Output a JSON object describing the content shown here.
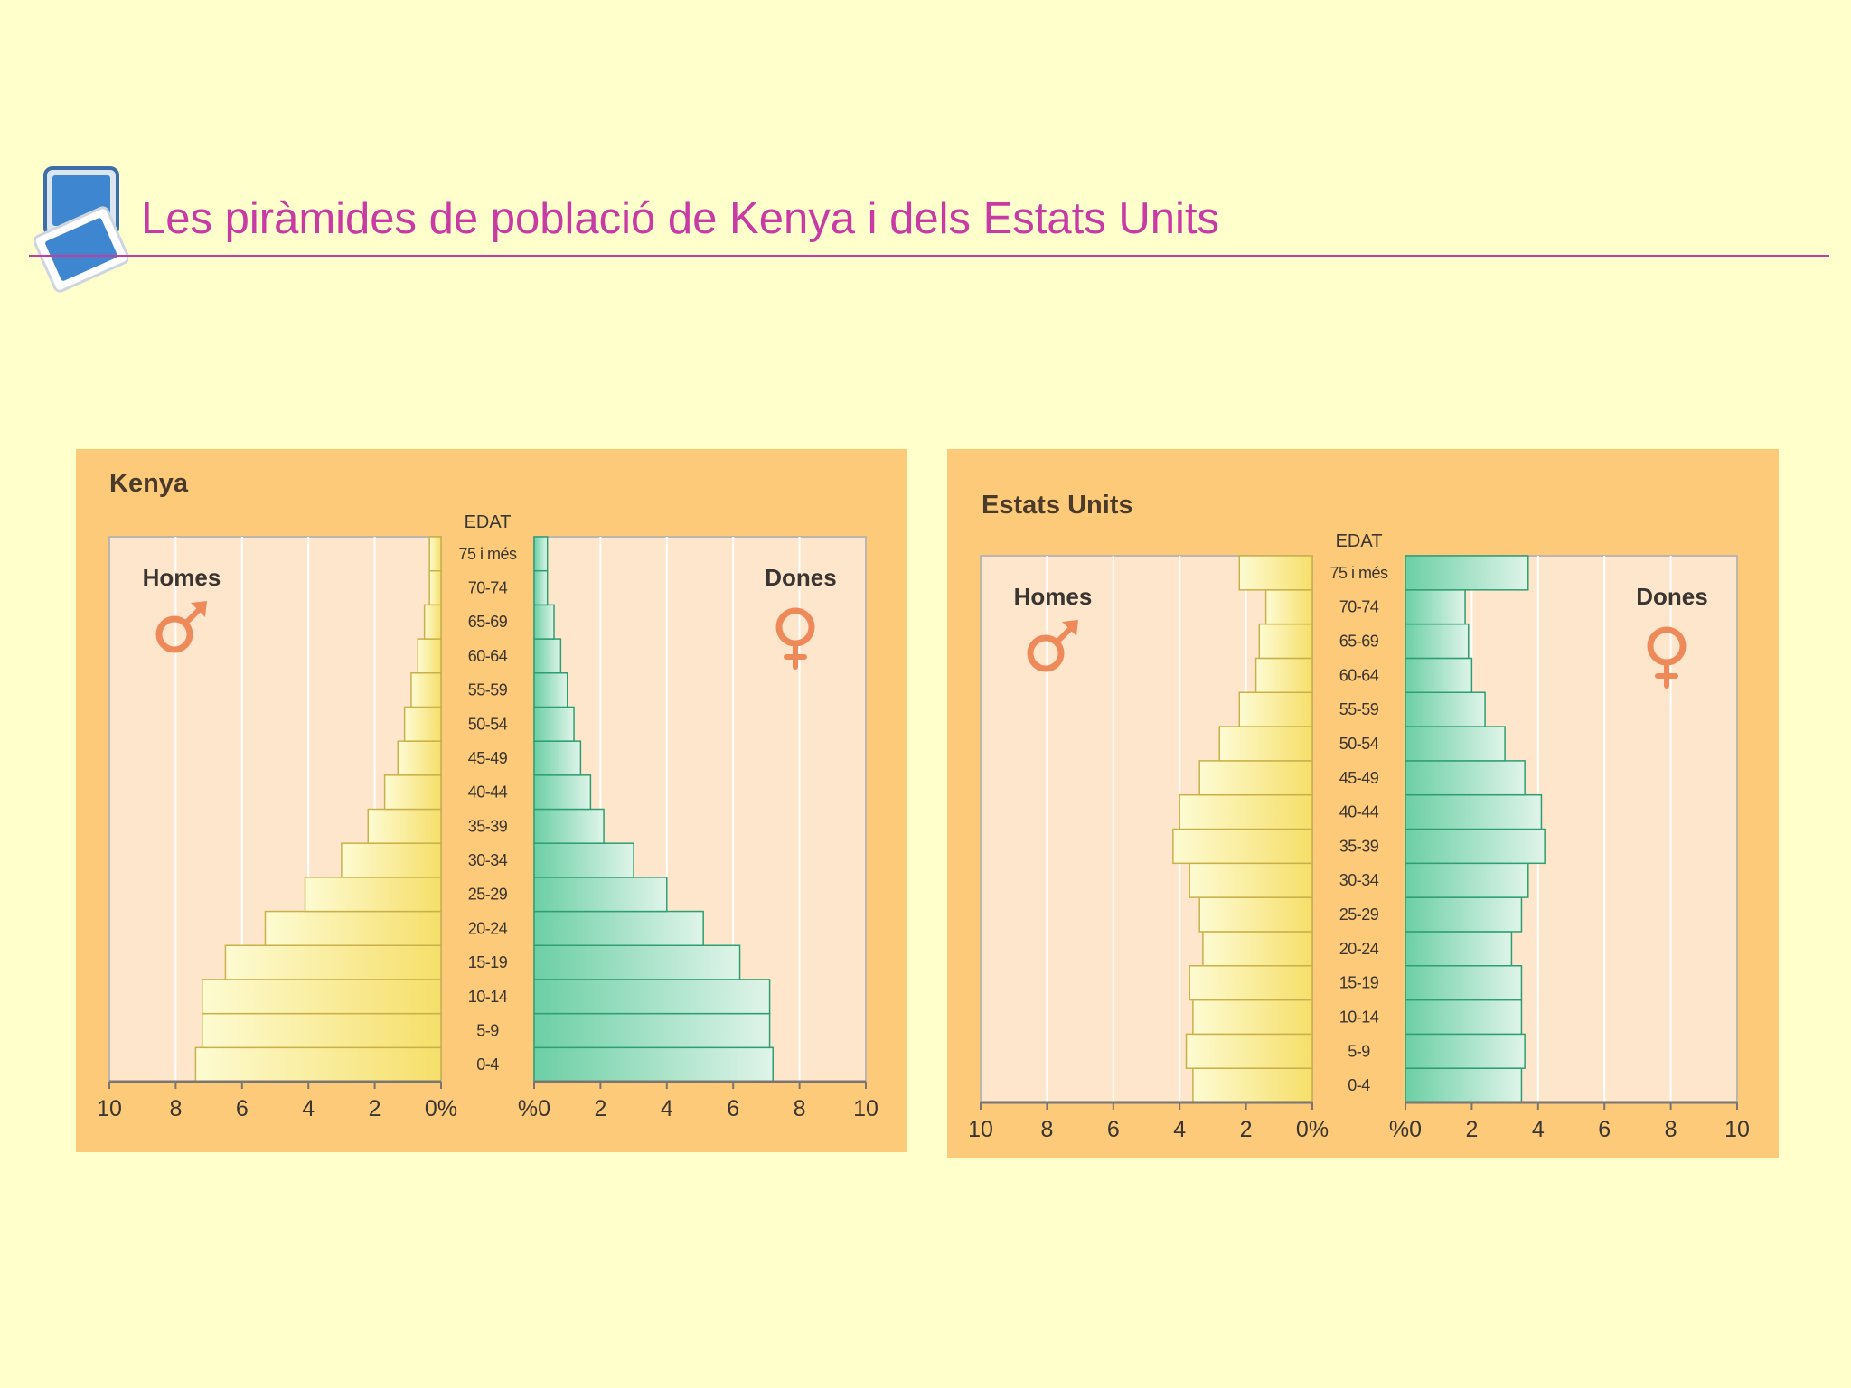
{
  "slide": {
    "title": "Les piràmides de població de Kenya i dels Estats Units",
    "title_color": "#c83aa4",
    "background": "#ffffcc",
    "logo_icon": "two-overlapping-screens-icon"
  },
  "chart_data": [
    {
      "type": "bar",
      "subtype": "population-pyramid",
      "title": "Kenya",
      "age_label": "EDAT",
      "categories": [
        "0-4",
        "5-9",
        "10-14",
        "15-19",
        "20-24",
        "25-29",
        "30-34",
        "35-39",
        "40-44",
        "45-49",
        "50-54",
        "55-59",
        "60-64",
        "65-69",
        "70-74",
        "75 i més"
      ],
      "series": [
        {
          "name": "Homes",
          "side": "left",
          "color": "#f7e98a",
          "values": [
            7.4,
            7.2,
            7.2,
            6.5,
            5.3,
            4.1,
            3.0,
            2.2,
            1.7,
            1.3,
            1.1,
            0.9,
            0.7,
            0.5,
            0.35,
            0.35
          ]
        },
        {
          "name": "Dones",
          "side": "right",
          "color": "#6fcfa6",
          "values": [
            7.2,
            7.1,
            7.1,
            6.2,
            5.1,
            4.0,
            3.0,
            2.1,
            1.7,
            1.4,
            1.2,
            1.0,
            0.8,
            0.6,
            0.4,
            0.4
          ]
        }
      ],
      "xlim": [
        0,
        10
      ],
      "xticks": [
        "10",
        "8",
        "6",
        "4",
        "2",
        "0%",
        "%0",
        "2",
        "4",
        "6",
        "8",
        "10"
      ],
      "icons": {
        "men": "male-symbol-icon",
        "women": "female-symbol-icon"
      },
      "grid": true
    },
    {
      "type": "bar",
      "subtype": "population-pyramid",
      "title": "Estats Units",
      "age_label": "EDAT",
      "categories": [
        "0-4",
        "5-9",
        "10-14",
        "15-19",
        "20-24",
        "25-29",
        "30-34",
        "35-39",
        "40-44",
        "45-49",
        "50-54",
        "55-59",
        "60-64",
        "65-69",
        "70-74",
        "75 i més"
      ],
      "series": [
        {
          "name": "Homes",
          "side": "left",
          "color": "#f7e98a",
          "values": [
            3.6,
            3.8,
            3.6,
            3.7,
            3.3,
            3.4,
            3.7,
            4.2,
            4.0,
            3.4,
            2.8,
            2.2,
            1.7,
            1.6,
            1.4,
            2.2
          ]
        },
        {
          "name": "Dones",
          "side": "right",
          "color": "#6fcfa6",
          "values": [
            3.5,
            3.6,
            3.5,
            3.5,
            3.2,
            3.5,
            3.7,
            4.2,
            4.1,
            3.6,
            3.0,
            2.4,
            2.0,
            1.9,
            1.8,
            3.7
          ]
        }
      ],
      "xlim": [
        0,
        10
      ],
      "xticks": [
        "10",
        "8",
        "6",
        "4",
        "2",
        "0%",
        "%0",
        "2",
        "4",
        "6",
        "8",
        "10"
      ],
      "icons": {
        "men": "male-symbol-icon",
        "women": "female-symbol-icon"
      },
      "grid": true
    }
  ]
}
